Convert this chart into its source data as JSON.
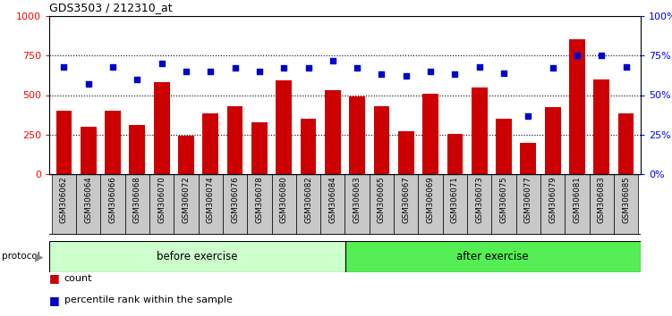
{
  "title": "GDS3503 / 212310_at",
  "categories": [
    "GSM306062",
    "GSM306064",
    "GSM306066",
    "GSM306068",
    "GSM306070",
    "GSM306072",
    "GSM306074",
    "GSM306076",
    "GSM306078",
    "GSM306080",
    "GSM306082",
    "GSM306084",
    "GSM306063",
    "GSM306065",
    "GSM306067",
    "GSM306069",
    "GSM306071",
    "GSM306073",
    "GSM306075",
    "GSM306077",
    "GSM306079",
    "GSM306081",
    "GSM306083",
    "GSM306085"
  ],
  "counts": [
    400,
    300,
    400,
    310,
    580,
    245,
    385,
    430,
    325,
    595,
    350,
    530,
    490,
    430,
    270,
    510,
    255,
    550,
    350,
    195,
    425,
    855,
    600,
    385
  ],
  "percentiles": [
    68,
    57,
    68,
    60,
    70,
    65,
    65,
    67,
    65,
    67,
    67,
    72,
    67,
    63,
    62,
    65,
    63,
    68,
    64,
    37,
    67,
    75,
    75,
    68
  ],
  "before_exercise_count": 12,
  "after_exercise_count": 12,
  "bar_color": "#cc0000",
  "dot_color": "#0000cc",
  "before_color": "#ccffcc",
  "after_color": "#55ee55",
  "protocol_label": "protocol",
  "before_label": "before exercise",
  "after_label": "after exercise",
  "legend_count": "count",
  "legend_percentile": "percentile rank within the sample",
  "ylim_left": [
    0,
    1000
  ],
  "ylim_right": [
    0,
    100
  ],
  "yticks_left": [
    0,
    250,
    500,
    750,
    1000
  ],
  "yticks_right": [
    0,
    25,
    50,
    75,
    100
  ],
  "hgrid_values": [
    250,
    500,
    750
  ]
}
